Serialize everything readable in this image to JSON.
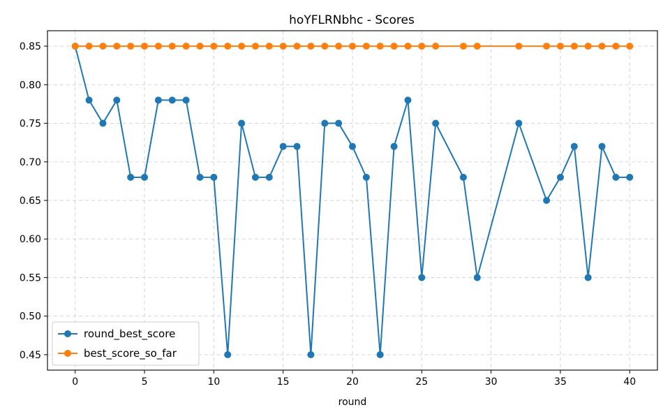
{
  "chart_data": {
    "type": "line",
    "title": "hoYFLRNbhc - Scores",
    "xlabel": "round",
    "ylabel": "",
    "xlim": [
      -2,
      42
    ],
    "ylim": [
      0.43,
      0.87
    ],
    "xticks": [
      0,
      5,
      10,
      15,
      20,
      25,
      30,
      35,
      40
    ],
    "yticks": [
      0.45,
      0.5,
      0.55,
      0.6,
      0.65,
      0.7,
      0.75,
      0.8,
      0.85
    ],
    "xtick_labels": [
      "0",
      "5",
      "10",
      "15",
      "20",
      "25",
      "30",
      "35",
      "40"
    ],
    "ytick_labels": [
      "0.45",
      "0.50",
      "0.55",
      "0.60",
      "0.65",
      "0.70",
      "0.75",
      "0.80",
      "0.85"
    ],
    "grid": true,
    "legend_position": "bottom-left",
    "x": [
      0,
      1,
      2,
      3,
      4,
      5,
      6,
      7,
      8,
      9,
      10,
      11,
      12,
      13,
      14,
      15,
      16,
      17,
      18,
      19,
      20,
      21,
      22,
      23,
      24,
      25,
      26,
      28,
      29,
      32,
      34,
      35,
      36,
      37,
      38,
      39,
      40
    ],
    "series": [
      {
        "name": "round_best_score",
        "color": "#1f77b4",
        "marker": "circle",
        "values": [
          0.85,
          0.78,
          0.75,
          0.78,
          0.68,
          0.68,
          0.78,
          0.78,
          0.78,
          0.68,
          0.68,
          0.45,
          0.75,
          0.68,
          0.68,
          0.72,
          0.72,
          0.45,
          0.75,
          0.75,
          0.72,
          0.68,
          0.45,
          0.72,
          0.78,
          0.55,
          0.75,
          0.68,
          0.55,
          0.75,
          0.65,
          0.68,
          0.72,
          0.55,
          0.72,
          0.68,
          0.68
        ]
      },
      {
        "name": "best_score_so_far",
        "color": "#ff7f0e",
        "marker": "circle",
        "values": [
          0.85,
          0.85,
          0.85,
          0.85,
          0.85,
          0.85,
          0.85,
          0.85,
          0.85,
          0.85,
          0.85,
          0.85,
          0.85,
          0.85,
          0.85,
          0.85,
          0.85,
          0.85,
          0.85,
          0.85,
          0.85,
          0.85,
          0.85,
          0.85,
          0.85,
          0.85,
          0.85,
          0.85,
          0.85,
          0.85,
          0.85,
          0.85,
          0.85,
          0.85,
          0.85,
          0.85,
          0.85
        ]
      }
    ]
  }
}
